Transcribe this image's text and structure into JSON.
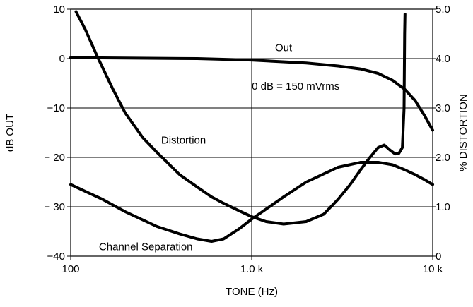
{
  "chart_data": {
    "type": "line",
    "xlabel": "TONE (Hz)",
    "ylabel": "dB OUT",
    "y2label": "% DISTORTION",
    "xscale": "log",
    "xlim": [
      100,
      10000
    ],
    "ylim": [
      -40,
      10
    ],
    "y2lim": [
      0,
      5
    ],
    "grid": true,
    "x_ticks": [
      {
        "value": 100,
        "label": "100"
      },
      {
        "value": 1000,
        "label": "1.0 k"
      },
      {
        "value": 10000,
        "label": "10 k"
      }
    ],
    "y_ticks": [
      {
        "value": 10,
        "label": "10"
      },
      {
        "value": 0,
        "label": "0"
      },
      {
        "value": -10,
        "label": "−10"
      },
      {
        "value": -20,
        "label": "− 20"
      },
      {
        "value": -30,
        "label": "− 30"
      },
      {
        "value": -40,
        "label": "−40"
      }
    ],
    "y2_ticks": [
      {
        "value": 5,
        "label": "5.0"
      },
      {
        "value": 4,
        "label": "4.0"
      },
      {
        "value": 3,
        "label": "3.0"
      },
      {
        "value": 2,
        "label": "2.0"
      },
      {
        "value": 1,
        "label": "1.0"
      },
      {
        "value": 0,
        "label": "0"
      }
    ],
    "series": [
      {
        "name": "Out",
        "axis": "y",
        "points": [
          [
            100,
            0.2
          ],
          [
            200,
            0.1
          ],
          [
            500,
            0
          ],
          [
            1000,
            -0.3
          ],
          [
            2000,
            -0.9
          ],
          [
            3000,
            -1.5
          ],
          [
            4000,
            -2.1
          ],
          [
            5000,
            -3.0
          ],
          [
            6000,
            -4.4
          ],
          [
            7000,
            -6.2
          ],
          [
            8000,
            -8.5
          ],
          [
            9000,
            -11.5
          ],
          [
            10000,
            -14.5
          ]
        ]
      },
      {
        "name": "Distortion",
        "axis": "y2",
        "points": [
          [
            107,
            4.95
          ],
          [
            120,
            4.6
          ],
          [
            140,
            4.05
          ],
          [
            170,
            3.4
          ],
          [
            200,
            2.9
          ],
          [
            250,
            2.4
          ],
          [
            300,
            2.1
          ],
          [
            400,
            1.65
          ],
          [
            500,
            1.4
          ],
          [
            600,
            1.2
          ],
          [
            700,
            1.07
          ],
          [
            850,
            0.92
          ],
          [
            1000,
            0.8
          ],
          [
            1200,
            0.7
          ],
          [
            1500,
            0.65
          ],
          [
            2000,
            0.7
          ],
          [
            2500,
            0.85
          ],
          [
            3000,
            1.15
          ],
          [
            3500,
            1.45
          ],
          [
            4000,
            1.75
          ],
          [
            4500,
            2.0
          ],
          [
            5000,
            2.2
          ],
          [
            5400,
            2.25
          ],
          [
            5800,
            2.15
          ],
          [
            6200,
            2.07
          ],
          [
            6500,
            2.08
          ],
          [
            6800,
            2.2
          ],
          [
            6950,
            3.0
          ],
          [
            7000,
            4.5
          ],
          [
            7030,
            4.9
          ]
        ]
      },
      {
        "name": "Channel Separation",
        "axis": "y",
        "points": [
          [
            100,
            -25.5
          ],
          [
            150,
            -28.5
          ],
          [
            200,
            -31
          ],
          [
            300,
            -34
          ],
          [
            400,
            -35.5
          ],
          [
            500,
            -36.5
          ],
          [
            600,
            -37
          ],
          [
            700,
            -36.5
          ],
          [
            850,
            -34.5
          ],
          [
            1000,
            -32.5
          ],
          [
            1500,
            -28
          ],
          [
            2000,
            -25
          ],
          [
            3000,
            -22
          ],
          [
            4000,
            -21
          ],
          [
            5000,
            -21
          ],
          [
            6000,
            -21.5
          ],
          [
            7000,
            -22.5
          ],
          [
            8000,
            -23.5
          ],
          [
            9000,
            -24.5
          ],
          [
            10000,
            -25.5
          ]
        ]
      }
    ],
    "annotations": [
      {
        "text": "Out",
        "x": 1500,
        "y": 1.5
      },
      {
        "text": "0 dB = 150 mVrms",
        "x": 1750,
        "y": -6.3
      },
      {
        "text": "Distortion",
        "x": 420,
        "y": -17.2
      },
      {
        "text": "Channel Separation",
        "x": 260,
        "y": -38.8
      }
    ]
  }
}
